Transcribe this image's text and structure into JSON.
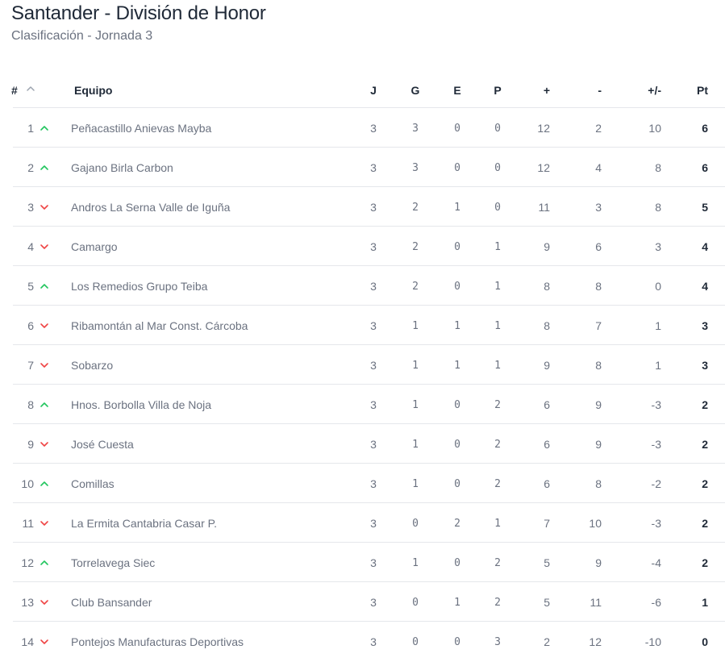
{
  "header": {
    "title": "Santander - División de Honor",
    "subtitle": "Clasificación - Jornada 3"
  },
  "columns": {
    "pos": "#",
    "team": "Equipo",
    "j": "J",
    "g": "G",
    "e": "E",
    "p": "P",
    "plus": "+",
    "minus": "-",
    "diff": "+/-",
    "pt": "Pt"
  },
  "colors": {
    "up": "#22c55e",
    "down": "#ef4444",
    "sort_icon": "#9ca3af"
  },
  "rows": [
    {
      "pos": "1",
      "trend": "up",
      "team": "Peñacastillo Anievas Mayba",
      "j": "3",
      "g": "3",
      "e": "0",
      "p": "0",
      "plus": "12",
      "minus": "2",
      "diff": "10",
      "pt": "6"
    },
    {
      "pos": "2",
      "trend": "up",
      "team": "Gajano Birla Carbon",
      "j": "3",
      "g": "3",
      "e": "0",
      "p": "0",
      "plus": "12",
      "minus": "4",
      "diff": "8",
      "pt": "6"
    },
    {
      "pos": "3",
      "trend": "down",
      "team": "Andros La Serna Valle de Iguña",
      "j": "3",
      "g": "2",
      "e": "1",
      "p": "0",
      "plus": "11",
      "minus": "3",
      "diff": "8",
      "pt": "5"
    },
    {
      "pos": "4",
      "trend": "down",
      "team": "Camargo",
      "j": "3",
      "g": "2",
      "e": "0",
      "p": "1",
      "plus": "9",
      "minus": "6",
      "diff": "3",
      "pt": "4"
    },
    {
      "pos": "5",
      "trend": "up",
      "team": "Los Remedios Grupo Teiba",
      "j": "3",
      "g": "2",
      "e": "0",
      "p": "1",
      "plus": "8",
      "minus": "8",
      "diff": "0",
      "pt": "4"
    },
    {
      "pos": "6",
      "trend": "down",
      "team": "Ribamontán al Mar Const. Cárcoba",
      "j": "3",
      "g": "1",
      "e": "1",
      "p": "1",
      "plus": "8",
      "minus": "7",
      "diff": "1",
      "pt": "3"
    },
    {
      "pos": "7",
      "trend": "down",
      "team": "Sobarzo",
      "j": "3",
      "g": "1",
      "e": "1",
      "p": "1",
      "plus": "9",
      "minus": "8",
      "diff": "1",
      "pt": "3"
    },
    {
      "pos": "8",
      "trend": "up",
      "team": "Hnos. Borbolla Villa de Noja",
      "j": "3",
      "g": "1",
      "e": "0",
      "p": "2",
      "plus": "6",
      "minus": "9",
      "diff": "-3",
      "pt": "2"
    },
    {
      "pos": "9",
      "trend": "down",
      "team": "José Cuesta",
      "j": "3",
      "g": "1",
      "e": "0",
      "p": "2",
      "plus": "6",
      "minus": "9",
      "diff": "-3",
      "pt": "2"
    },
    {
      "pos": "10",
      "trend": "up",
      "team": "Comillas",
      "j": "3",
      "g": "1",
      "e": "0",
      "p": "2",
      "plus": "6",
      "minus": "8",
      "diff": "-2",
      "pt": "2"
    },
    {
      "pos": "11",
      "trend": "down",
      "team": "La Ermita Cantabria Casar P.",
      "j": "3",
      "g": "0",
      "e": "2",
      "p": "1",
      "plus": "7",
      "minus": "10",
      "diff": "-3",
      "pt": "2"
    },
    {
      "pos": "12",
      "trend": "up",
      "team": "Torrelavega Siec",
      "j": "3",
      "g": "1",
      "e": "0",
      "p": "2",
      "plus": "5",
      "minus": "9",
      "diff": "-4",
      "pt": "2"
    },
    {
      "pos": "13",
      "trend": "down",
      "team": "Club Bansander",
      "j": "3",
      "g": "0",
      "e": "1",
      "p": "2",
      "plus": "5",
      "minus": "11",
      "diff": "-6",
      "pt": "1"
    },
    {
      "pos": "14",
      "trend": "down",
      "team": "Pontejos Manufacturas Deportivas",
      "j": "3",
      "g": "0",
      "e": "0",
      "p": "3",
      "plus": "2",
      "minus": "12",
      "diff": "-10",
      "pt": "0"
    }
  ]
}
